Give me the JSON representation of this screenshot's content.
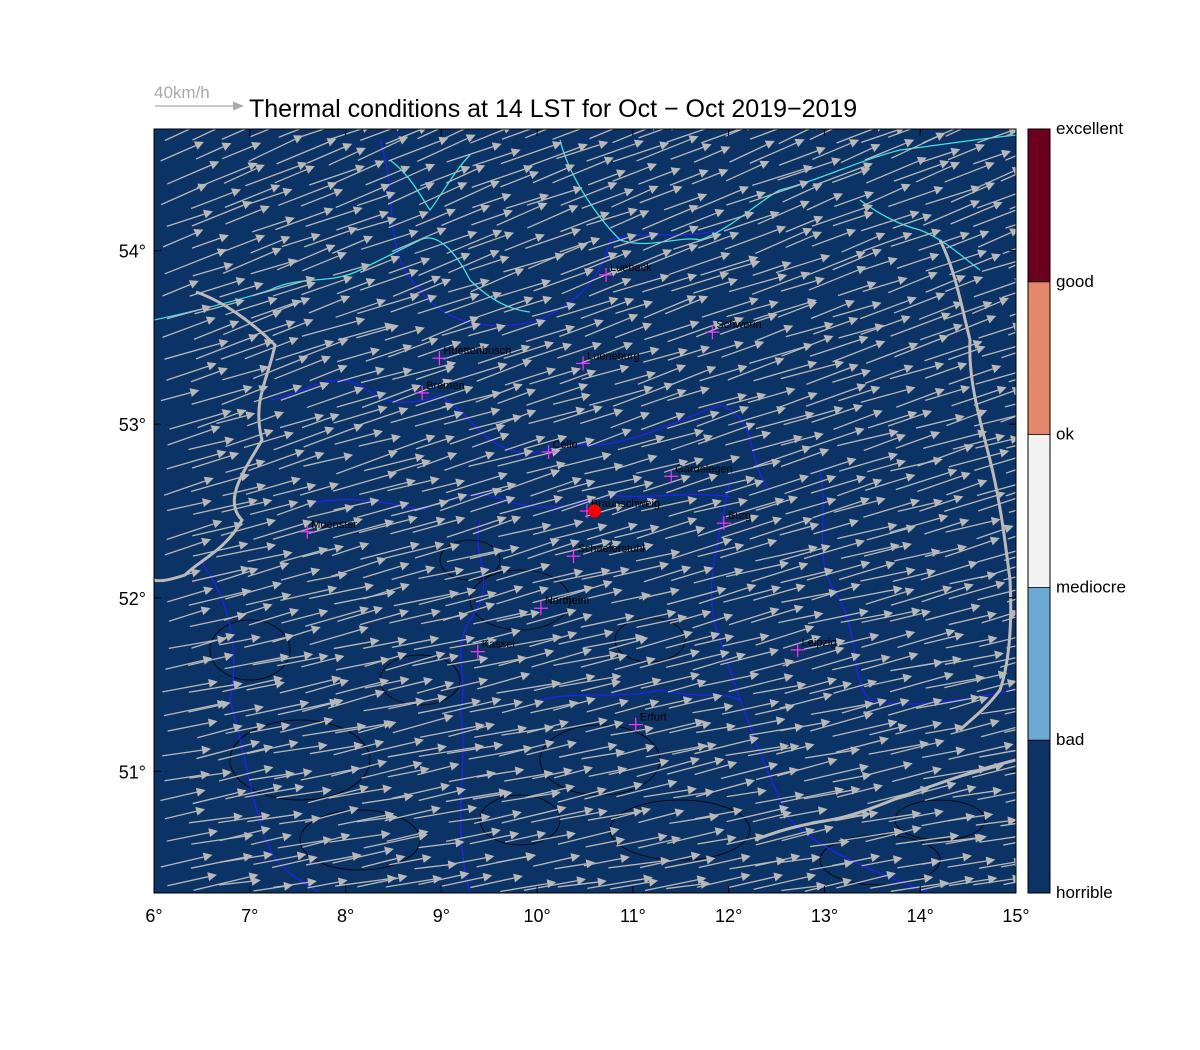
{
  "title": "Thermal conditions at 14 LST for Oct − Oct  2019−2019",
  "reference_vector": {
    "label": "40km/h",
    "speed": 40,
    "unit": "km/h"
  },
  "map": {
    "lon_range": [
      6,
      15
    ],
    "lat_range": [
      50.3,
      54.7
    ],
    "background_category": "horrible",
    "x_ticks": [
      "6°",
      "7°",
      "8°",
      "9°",
      "10°",
      "11°",
      "12°",
      "13°",
      "14°",
      "15°"
    ],
    "y_ticks": [
      {
        "lat": 51,
        "label": "51°"
      },
      {
        "lat": 52,
        "label": "52°"
      },
      {
        "lat": 53,
        "label": "53°"
      },
      {
        "lat": 54,
        "label": "54°"
      }
    ]
  },
  "colors": {
    "background": "#0b3366",
    "coast": "#40e0e0",
    "borders": "#2222ee",
    "country_border": "#bbbbbb",
    "vectors": "#b8b8b8",
    "city_marker": "#ff33ff",
    "highlight": "#ff0000",
    "contours": "#000000"
  },
  "colorbar": [
    {
      "label": "horrible",
      "color": "#0b3366"
    },
    {
      "label": "bad",
      "color": "#6aaad3"
    },
    {
      "label": "mediocre",
      "color": "#f2f2f2"
    },
    {
      "label": "ok",
      "color": "#e4876a"
    },
    {
      "label": "good",
      "color": "#6b0020"
    },
    {
      "label": "excellent",
      "color": ""
    }
  ],
  "cities": [
    {
      "name": "Luebeck",
      "lon": 10.72,
      "lat": 53.86
    },
    {
      "name": "Schwerin",
      "lon": 11.83,
      "lat": 53.53
    },
    {
      "name": "Huettenbusch",
      "lon": 8.98,
      "lat": 53.38
    },
    {
      "name": "Lueneburg",
      "lon": 10.48,
      "lat": 53.35
    },
    {
      "name": "Bremen",
      "lon": 8.8,
      "lat": 53.18
    },
    {
      "name": "Celle",
      "lon": 10.12,
      "lat": 52.84
    },
    {
      "name": "Gardelegen",
      "lon": 11.4,
      "lat": 52.7
    },
    {
      "name": "Braunschweig",
      "lon": 10.52,
      "lat": 52.5
    },
    {
      "name": "Burg",
      "lon": 11.95,
      "lat": 52.43
    },
    {
      "name": "Muenster",
      "lon": 7.6,
      "lat": 52.38
    },
    {
      "name": "Schaeferstuhl",
      "lon": 10.38,
      "lat": 52.24
    },
    {
      "name": "Northeim",
      "lon": 10.04,
      "lat": 51.94
    },
    {
      "name": "Kassel",
      "lon": 9.38,
      "lat": 51.69
    },
    {
      "name": "Leipzig",
      "lon": 12.72,
      "lat": 51.7
    },
    {
      "name": "Erfurt",
      "lon": 11.03,
      "lat": 51.27
    }
  ],
  "highlight_point": {
    "lon": 10.6,
    "lat": 52.5
  }
}
